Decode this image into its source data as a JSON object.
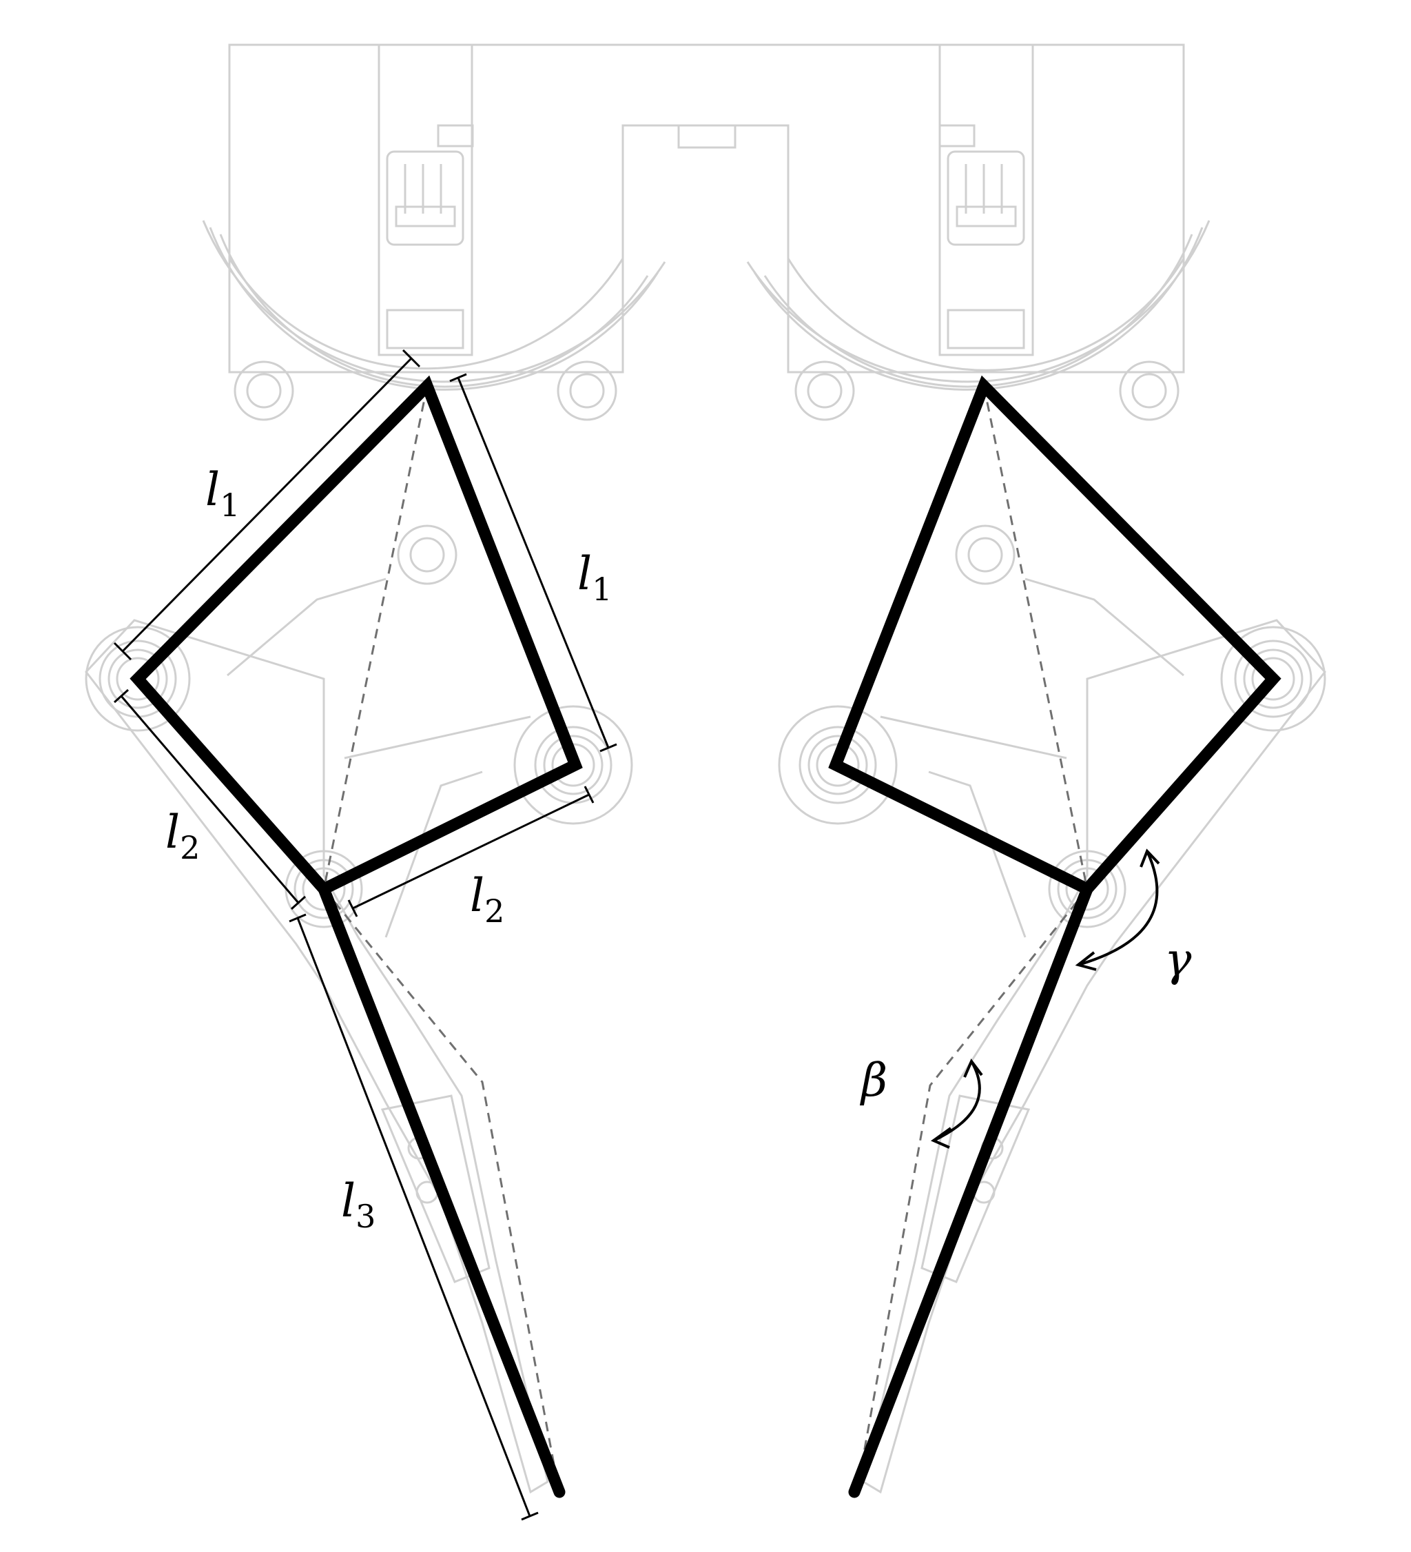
{
  "labels": {
    "l": "l",
    "sub1": "1",
    "sub2": "2",
    "sub3": "3",
    "beta": "β",
    "gamma": "γ"
  }
}
